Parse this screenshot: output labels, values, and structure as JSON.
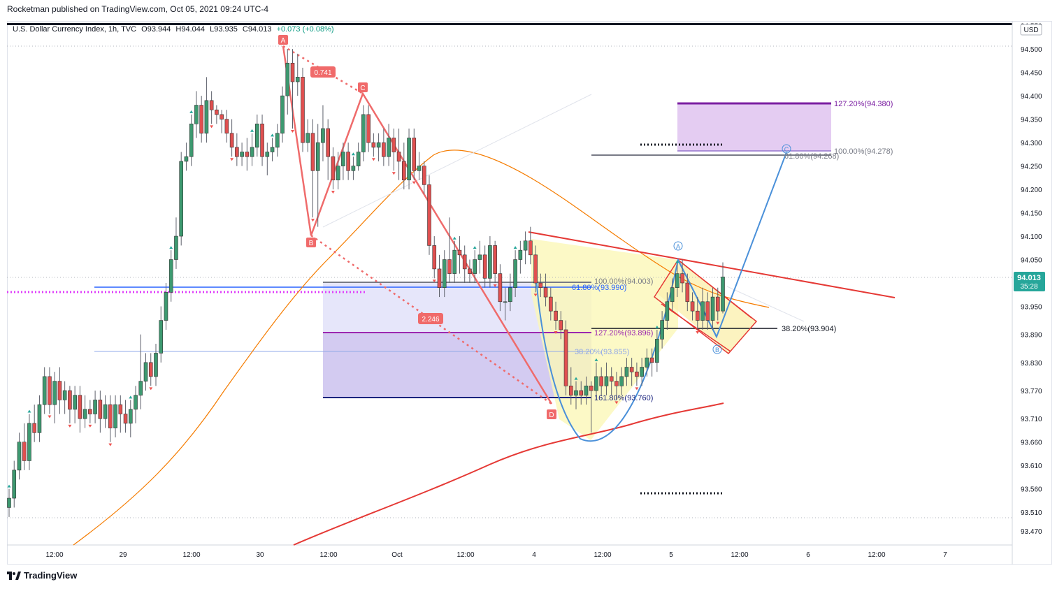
{
  "header": {
    "publisher_line": "Rocketman published on TradingView.com, Oct 05, 2021 09:24 UTC-4"
  },
  "symbol": {
    "name": "U.S. Dollar Currency Index, 1h, TVC",
    "open": "O93.944",
    "high": "H94.044",
    "low": "L93.935",
    "close": "C94.013",
    "change": "+0.073 (+0.08%)"
  },
  "currency_badge": "USD",
  "last_price": {
    "value": "94.013",
    "countdown": "35:28"
  },
  "footer": {
    "brand": "TradingView"
  },
  "chart_data": {
    "type": "candlestick",
    "ylim": [
      93.44,
      94.56
    ],
    "y_ticks": [
      "94.550",
      "94.500",
      "94.450",
      "94.400",
      "94.350",
      "94.300",
      "94.250",
      "94.200",
      "94.150",
      "94.100",
      "94.050",
      "93.950",
      "93.890",
      "93.830",
      "93.770",
      "93.710",
      "93.660",
      "93.610",
      "93.560",
      "93.510",
      "93.470"
    ],
    "x_ticks": [
      "12:00",
      "29",
      "12:00",
      "30",
      "12:00",
      "Oct",
      "12:00",
      "4",
      "12:00",
      "5",
      "12:00",
      "6",
      "12:00",
      "7"
    ],
    "harmonic_points": [
      {
        "label": "A",
        "price": 94.5
      },
      {
        "label": "B",
        "price": 94.1
      },
      {
        "label": "C",
        "price": 94.4
      },
      {
        "label": "D",
        "price": 93.75
      }
    ],
    "ratios": [
      "0.741",
      "2.246"
    ],
    "fib_levels": [
      {
        "label": "100.00%(94.003)",
        "price": 94.003
      },
      {
        "label": "61.80%(93.990)",
        "price": 93.99
      },
      {
        "label": "127.20%(93.896)",
        "price": 93.896
      },
      {
        "label": "38.20%(93.855)",
        "price": 93.855
      },
      {
        "label": "161.80%(93.760)",
        "price": 93.76
      },
      {
        "label": "38.20%(93.904)",
        "price": 93.904
      },
      {
        "label": "127.20%(94.380)",
        "price": 94.38
      },
      {
        "label": "100.00%(94.278)",
        "price": 94.278
      },
      {
        "label": "61.80%(94.268)",
        "price": 94.268
      }
    ],
    "wave_points": [
      {
        "label": "A",
        "price": 94.05
      },
      {
        "label": "B",
        "price": 93.89
      },
      {
        "label": "C",
        "price": 94.28
      }
    ],
    "candles": [
      [
        93.52,
        93.54,
        93.5,
        93.56
      ],
      [
        93.54,
        93.6,
        93.52,
        93.62
      ],
      [
        93.6,
        93.66,
        93.58,
        93.68
      ],
      [
        93.66,
        93.62,
        93.6,
        93.7
      ],
      [
        93.62,
        93.7,
        93.6,
        93.72
      ],
      [
        93.7,
        93.68,
        93.66,
        93.74
      ],
      [
        93.68,
        93.74,
        93.66,
        93.76
      ],
      [
        93.74,
        93.8,
        93.72,
        93.82
      ],
      [
        93.8,
        93.74,
        93.72,
        93.82
      ],
      [
        93.74,
        93.79,
        93.7,
        93.81
      ],
      [
        93.79,
        93.75,
        93.72,
        93.82
      ],
      [
        93.75,
        93.77,
        93.72,
        93.79
      ],
      [
        93.77,
        93.73,
        93.7,
        93.78
      ],
      [
        93.73,
        93.76,
        93.7,
        93.78
      ],
      [
        93.76,
        93.71,
        93.68,
        93.78
      ],
      [
        93.71,
        93.73,
        93.69,
        93.76
      ],
      [
        93.73,
        93.72,
        93.7,
        93.75
      ],
      [
        93.72,
        93.75,
        93.7,
        93.77
      ],
      [
        93.75,
        93.71,
        93.68,
        93.77
      ],
      [
        93.71,
        93.74,
        93.69,
        93.76
      ],
      [
        93.74,
        93.69,
        93.66,
        93.76
      ],
      [
        93.69,
        93.74,
        93.67,
        93.76
      ],
      [
        93.74,
        93.72,
        93.68,
        93.76
      ],
      [
        93.72,
        93.7,
        93.68,
        93.75
      ],
      [
        93.7,
        93.73,
        93.67,
        93.75
      ],
      [
        93.73,
        93.76,
        93.7,
        93.78
      ],
      [
        93.76,
        93.79,
        93.73,
        93.89
      ],
      [
        93.79,
        93.83,
        93.77,
        93.85
      ],
      [
        93.83,
        93.8,
        93.78,
        93.85
      ],
      [
        93.8,
        93.85,
        93.78,
        93.87
      ],
      [
        93.85,
        93.92,
        93.83,
        93.95
      ],
      [
        93.92,
        93.98,
        93.9,
        94.0
      ],
      [
        93.98,
        94.05,
        93.96,
        94.07
      ],
      [
        94.05,
        94.1,
        94.03,
        94.14
      ],
      [
        94.1,
        94.26,
        94.08,
        94.28
      ],
      [
        94.26,
        94.27,
        94.24,
        94.3
      ],
      [
        94.27,
        94.34,
        94.25,
        94.36
      ],
      [
        94.34,
        94.38,
        94.31,
        94.41
      ],
      [
        94.38,
        94.32,
        94.3,
        94.4
      ],
      [
        94.32,
        94.39,
        94.3,
        94.44
      ],
      [
        94.39,
        94.37,
        94.34,
        94.41
      ],
      [
        94.37,
        94.36,
        94.34,
        94.38
      ],
      [
        94.36,
        94.35,
        94.32,
        94.37
      ],
      [
        94.35,
        94.32,
        94.3,
        94.37
      ],
      [
        94.32,
        94.29,
        94.27,
        94.35
      ],
      [
        94.29,
        94.27,
        94.25,
        94.32
      ],
      [
        94.27,
        94.28,
        94.25,
        94.3
      ],
      [
        94.28,
        94.27,
        94.24,
        94.31
      ],
      [
        94.27,
        94.29,
        94.25,
        94.32
      ],
      [
        94.29,
        94.34,
        94.27,
        94.36
      ],
      [
        94.34,
        94.27,
        94.25,
        94.36
      ],
      [
        94.27,
        94.28,
        94.23,
        94.3
      ],
      [
        94.28,
        94.29,
        94.26,
        94.31
      ],
      [
        94.29,
        94.32,
        94.27,
        94.34
      ],
      [
        94.32,
        94.4,
        94.3,
        94.42
      ],
      [
        94.4,
        94.47,
        94.36,
        94.5
      ],
      [
        94.47,
        94.43,
        94.33,
        94.5
      ],
      [
        94.43,
        94.44,
        94.4,
        94.49
      ],
      [
        94.44,
        94.3,
        94.28,
        94.46
      ],
      [
        94.3,
        94.32,
        94.28,
        94.35
      ],
      [
        94.32,
        94.24,
        94.14,
        94.35
      ],
      [
        94.24,
        94.3,
        94.12,
        94.34
      ],
      [
        94.3,
        94.33,
        94.26,
        94.38
      ],
      [
        94.33,
        94.27,
        94.22,
        94.35
      ],
      [
        94.27,
        94.22,
        94.2,
        94.29
      ],
      [
        94.22,
        94.25,
        94.2,
        94.28
      ],
      [
        94.25,
        94.28,
        94.22,
        94.3
      ],
      [
        94.28,
        94.24,
        94.22,
        94.3
      ],
      [
        94.24,
        94.25,
        94.22,
        94.27
      ],
      [
        94.25,
        94.28,
        94.24,
        94.3
      ],
      [
        94.28,
        94.36,
        94.26,
        94.38
      ],
      [
        94.36,
        94.3,
        94.28,
        94.38
      ],
      [
        94.3,
        94.29,
        94.27,
        94.32
      ],
      [
        94.29,
        94.3,
        94.26,
        94.32
      ],
      [
        94.3,
        94.27,
        94.25,
        94.33
      ],
      [
        94.27,
        94.31,
        94.25,
        94.34
      ],
      [
        94.31,
        94.28,
        94.24,
        94.33
      ],
      [
        94.28,
        94.26,
        94.22,
        94.33
      ],
      [
        94.26,
        94.22,
        94.2,
        94.3
      ],
      [
        94.22,
        94.31,
        94.2,
        94.33
      ],
      [
        94.31,
        94.24,
        94.22,
        94.33
      ],
      [
        94.24,
        94.25,
        94.22,
        94.28
      ],
      [
        94.25,
        94.21,
        94.19,
        94.26
      ],
      [
        94.21,
        94.08,
        94.06,
        94.23
      ],
      [
        94.08,
        94.03,
        94.01,
        94.1
      ],
      [
        94.03,
        93.99,
        93.97,
        94.06
      ],
      [
        93.99,
        94.05,
        93.97,
        94.07
      ],
      [
        94.05,
        94.02,
        94.0,
        94.14
      ],
      [
        94.02,
        94.07,
        94.0,
        94.09
      ],
      [
        94.07,
        94.06,
        94.02,
        94.1
      ],
      [
        94.06,
        94.03,
        94.0,
        94.08
      ],
      [
        94.03,
        94.02,
        94.0,
        94.05
      ],
      [
        94.02,
        94.05,
        94.0,
        94.07
      ],
      [
        94.05,
        94.06,
        94.02,
        94.09
      ],
      [
        94.06,
        94.01,
        93.99,
        94.08
      ],
      [
        94.01,
        94.08,
        93.99,
        94.1
      ],
      [
        94.08,
        94.02,
        94.0,
        94.09
      ],
      [
        94.02,
        93.96,
        93.94,
        94.04
      ],
      [
        93.96,
        93.96,
        93.92,
        93.99
      ],
      [
        93.96,
        93.99,
        93.94,
        94.02
      ],
      [
        93.99,
        94.05,
        93.97,
        94.07
      ],
      [
        94.05,
        94.07,
        94.02,
        94.09
      ],
      [
        94.07,
        94.09,
        94.04,
        94.11
      ],
      [
        94.09,
        94.06,
        94.04,
        94.12
      ],
      [
        94.06,
        94.0,
        93.98,
        94.08
      ],
      [
        94.0,
        93.99,
        93.97,
        94.02
      ],
      [
        93.99,
        93.97,
        93.95,
        94.02
      ],
      [
        93.97,
        93.94,
        93.92,
        93.99
      ],
      [
        93.94,
        93.92,
        93.9,
        93.96
      ],
      [
        93.92,
        93.9,
        93.88,
        93.94
      ],
      [
        93.9,
        93.78,
        93.76,
        93.92
      ],
      [
        93.78,
        93.76,
        93.74,
        93.82
      ],
      [
        93.76,
        93.77,
        93.73,
        93.79
      ],
      [
        93.77,
        93.76,
        93.74,
        93.79
      ],
      [
        93.76,
        93.78,
        93.74,
        93.8
      ],
      [
        93.78,
        93.77,
        93.68,
        93.79
      ],
      [
        93.77,
        93.8,
        93.75,
        93.83
      ],
      [
        93.8,
        93.78,
        93.76,
        93.82
      ],
      [
        93.78,
        93.8,
        93.76,
        93.83
      ],
      [
        93.8,
        93.79,
        93.76,
        93.82
      ],
      [
        93.79,
        93.78,
        93.75,
        93.81
      ],
      [
        93.78,
        93.8,
        93.76,
        93.82
      ],
      [
        93.8,
        93.82,
        93.78,
        93.84
      ],
      [
        93.82,
        93.81,
        93.78,
        93.84
      ],
      [
        93.81,
        93.8,
        93.78,
        93.83
      ],
      [
        93.8,
        93.82,
        93.78,
        93.84
      ],
      [
        93.82,
        93.84,
        93.8,
        93.86
      ],
      [
        93.84,
        93.83,
        93.8,
        93.86
      ],
      [
        93.83,
        93.88,
        93.81,
        93.9
      ],
      [
        93.88,
        93.92,
        93.86,
        93.94
      ],
      [
        93.92,
        93.96,
        93.9,
        93.98
      ],
      [
        93.96,
        93.99,
        93.94,
        94.01
      ],
      [
        93.99,
        94.02,
        93.97,
        94.04
      ],
      [
        94.02,
        94.0,
        93.98,
        94.05
      ],
      [
        94.0,
        93.96,
        93.94,
        94.02
      ],
      [
        93.96,
        93.94,
        93.92,
        93.98
      ],
      [
        93.94,
        93.92,
        93.9,
        93.97
      ],
      [
        93.92,
        93.96,
        93.9,
        93.99
      ],
      [
        93.96,
        93.92,
        93.9,
        93.98
      ],
      [
        93.92,
        93.97,
        93.9,
        93.99
      ],
      [
        93.97,
        93.94,
        93.92,
        93.99
      ],
      [
        93.94,
        94.013,
        93.935,
        94.044
      ]
    ]
  }
}
